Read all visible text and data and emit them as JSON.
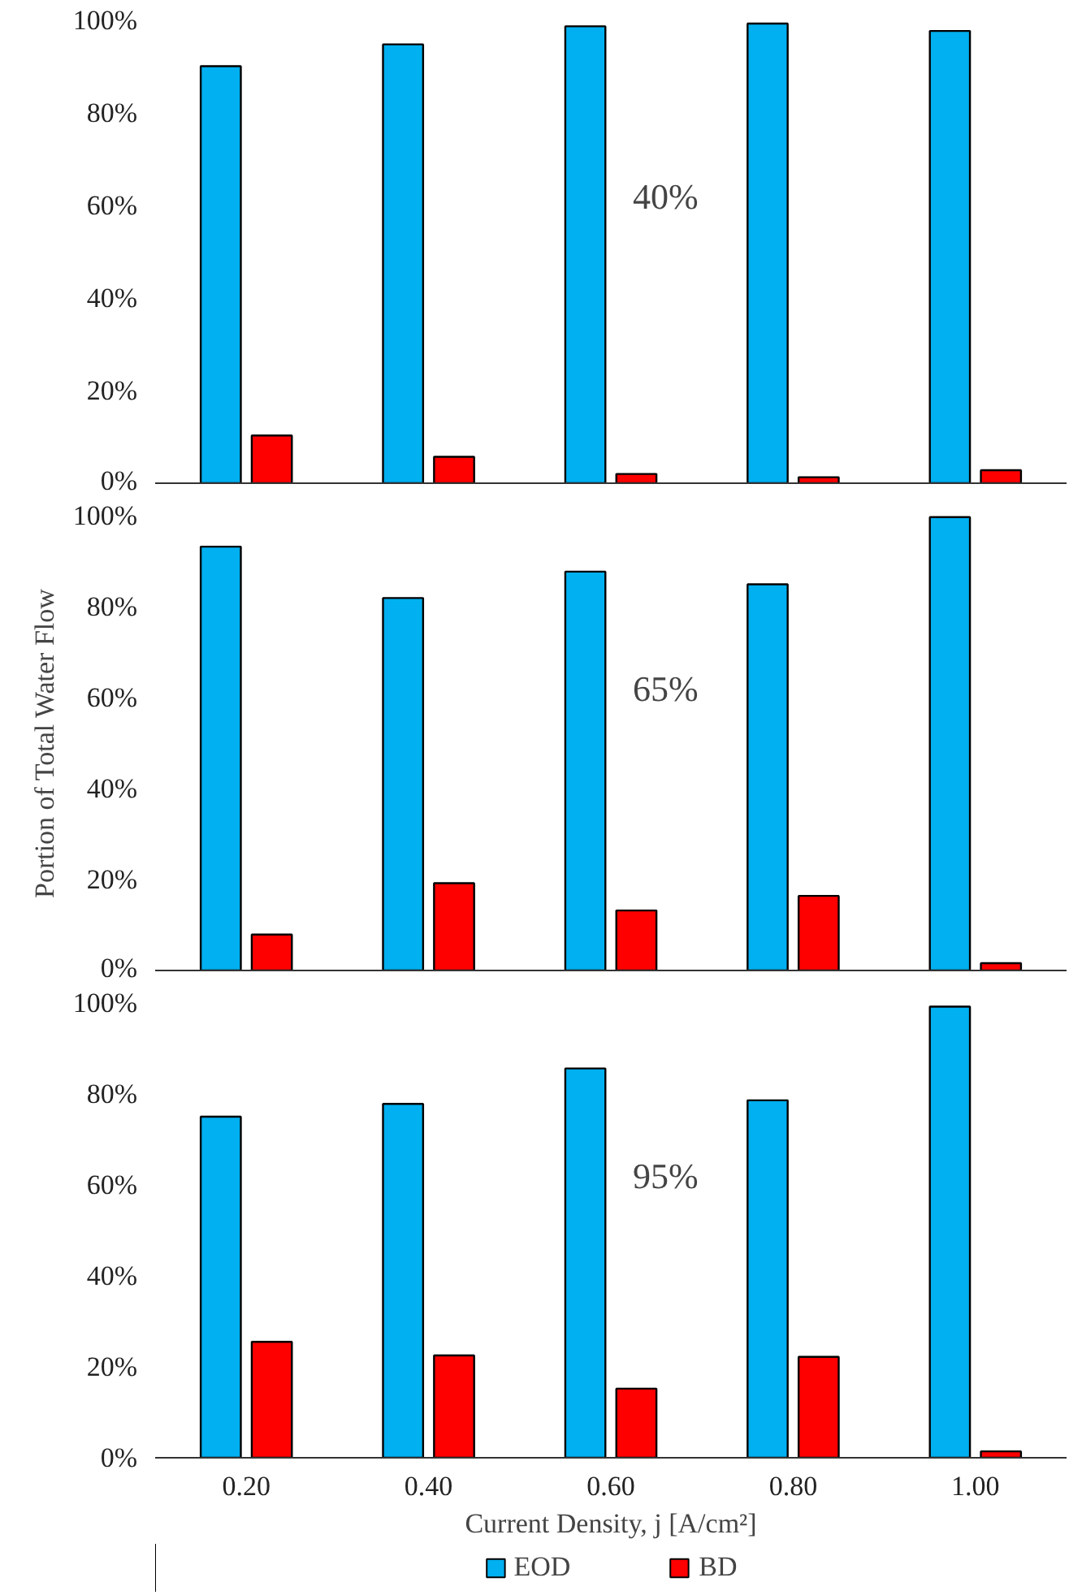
{
  "chart_data": [
    {
      "type": "bar",
      "categories": [
        "0.20",
        "0.40",
        "0.60",
        "0.80",
        "1.00"
      ],
      "annotations": [
        "40%"
      ],
      "ylim": [
        0,
        100
      ],
      "yticks": [
        {
          "value": 0,
          "label": "0%"
        },
        {
          "value": 20,
          "label": "20%"
        },
        {
          "value": 40,
          "label": "40%"
        },
        {
          "value": 60,
          "label": "60%"
        },
        {
          "value": 80,
          "label": "80%"
        },
        {
          "value": 100,
          "label": "100%"
        }
      ],
      "tick_labels": "y",
      "grid": false,
      "legend": false,
      "series": [
        {
          "color": "#00b0f0",
          "values": [
            90.1,
            94.8,
            98.7,
            99.3,
            97.7
          ]
        },
        {
          "color": "#ff0000",
          "values": [
            10.3,
            5.7,
            2.0,
            1.3,
            2.8
          ]
        }
      ]
    },
    {
      "type": "bar",
      "categories": [
        "0.20",
        "0.40",
        "0.60",
        "0.80",
        "1.00"
      ],
      "annotations": [
        "65%"
      ],
      "ylabel": "Portion of Total Water Flow",
      "ylim": [
        0,
        100
      ],
      "yticks": [
        {
          "value": 0,
          "label": "0%"
        },
        {
          "value": 20,
          "label": "20%"
        },
        {
          "value": 40,
          "label": "40%"
        },
        {
          "value": 60,
          "label": "60%"
        },
        {
          "value": 80,
          "label": "80%"
        },
        {
          "value": 100,
          "label": "100%"
        }
      ],
      "tick_labels": "y",
      "grid": false,
      "legend": false,
      "series": [
        {
          "color": "#00b0f0",
          "values": [
            93.2,
            81.9,
            87.7,
            84.9,
            99.7
          ]
        },
        {
          "color": "#ff0000",
          "values": [
            7.9,
            19.2,
            13.2,
            16.4,
            1.6
          ]
        }
      ]
    },
    {
      "type": "bar",
      "categories": [
        "0.20",
        "0.40",
        "0.60",
        "0.80",
        "1.00"
      ],
      "annotations": [
        "95%"
      ],
      "xlabel": "Current Density, j [A/cm²]",
      "ylim": [
        0,
        100
      ],
      "yticks": [
        {
          "value": 0,
          "label": "0%"
        },
        {
          "value": 20,
          "label": "20%"
        },
        {
          "value": 40,
          "label": "40%"
        },
        {
          "value": 60,
          "label": "60%"
        },
        {
          "value": 80,
          "label": "80%"
        },
        {
          "value": 100,
          "label": "100%"
        }
      ],
      "grid": false,
      "legend": "bottom",
      "series": [
        {
          "name": "EOD",
          "color": "#00b0f0",
          "values": [
            75.0,
            77.8,
            85.6,
            78.6,
            99.2
          ]
        },
        {
          "name": "BD",
          "color": "#ff0000",
          "values": [
            25.5,
            22.5,
            15.2,
            22.2,
            1.4
          ]
        }
      ]
    }
  ]
}
